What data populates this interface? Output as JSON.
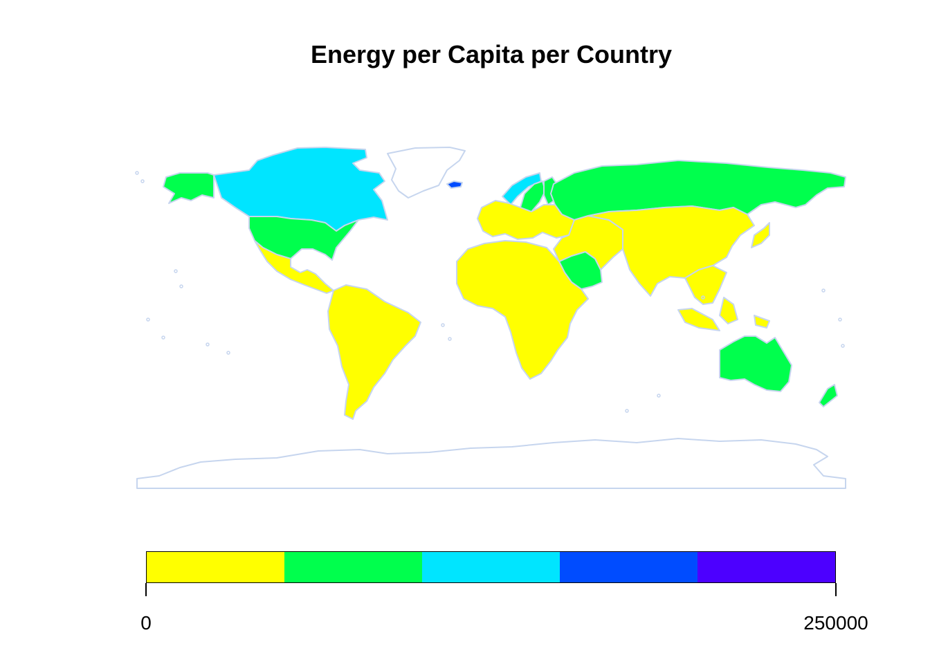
{
  "title": "Energy per Capita per Country",
  "colors": {
    "border": "#c6d5ee",
    "bin1": "#ffff00",
    "bin2": "#00ff4d",
    "bin3": "#00e5ff",
    "bin4": "#004cff",
    "bin5": "#4c00ff"
  },
  "legend": {
    "min_label": "0",
    "max_label": "250000",
    "range": [
      0,
      250000
    ],
    "bins": [
      {
        "from": 0,
        "to": 50000,
        "color": "#ffff00"
      },
      {
        "from": 50000,
        "to": 100000,
        "color": "#00ff4d"
      },
      {
        "from": 100000,
        "to": 150000,
        "color": "#00e5ff"
      },
      {
        "from": 150000,
        "to": 200000,
        "color": "#004cff"
      },
      {
        "from": 200000,
        "to": 250000,
        "color": "#4c00ff"
      }
    ]
  },
  "regions": [
    {
      "name": "Canada",
      "bin": 3
    },
    {
      "name": "Greenland",
      "bin": 0
    },
    {
      "name": "Alaska",
      "bin": 2
    },
    {
      "name": "United States",
      "bin": 2
    },
    {
      "name": "Iceland",
      "bin": 4
    },
    {
      "name": "Norway",
      "bin": 3
    },
    {
      "name": "Sweden",
      "bin": 2
    },
    {
      "name": "Finland",
      "bin": 2
    },
    {
      "name": "Russia",
      "bin": 2
    },
    {
      "name": "Saudi Arabia",
      "bin": 2
    },
    {
      "name": "Australia",
      "bin": 2
    },
    {
      "name": "New Zealand",
      "bin": 2
    },
    {
      "name": "Mexico and Central America",
      "bin": 1
    },
    {
      "name": "South America",
      "bin": 1
    },
    {
      "name": "Europe",
      "bin": 1
    },
    {
      "name": "Africa",
      "bin": 1
    },
    {
      "name": "Middle East",
      "bin": 1
    },
    {
      "name": "Asia",
      "bin": 1
    },
    {
      "name": "Japan",
      "bin": 1
    },
    {
      "name": "Southeast Asia",
      "bin": 1
    },
    {
      "name": "Antarctica",
      "bin": 0
    }
  ]
}
